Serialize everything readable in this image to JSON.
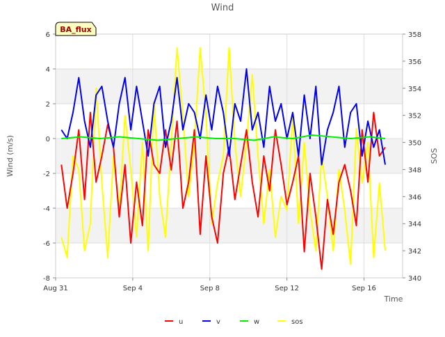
{
  "chart_data": {
    "type": "line",
    "title": "Wind",
    "xlabel": "Time",
    "ylabel": "Wind (m/s)",
    "y2label": "SOS",
    "site_badge": "BA_flux",
    "x_unit": "days since Aug 31",
    "xlim": [
      0,
      18
    ],
    "ylim": [
      -8,
      6
    ],
    "y2lim": [
      340,
      358
    ],
    "x_ticks": [
      {
        "value": 0,
        "label": "Aug 31"
      },
      {
        "value": 4,
        "label": "Sep 4"
      },
      {
        "value": 8,
        "label": "Sep 8"
      },
      {
        "value": 12,
        "label": "Sep 12"
      },
      {
        "value": 16,
        "label": "Sep 16"
      }
    ],
    "y_ticks": [
      "-8",
      "-6",
      "-4",
      "-2",
      "0",
      "2",
      "4",
      "6"
    ],
    "y2_ticks": [
      "340",
      "342",
      "344",
      "346",
      "348",
      "350",
      "352",
      "354",
      "356",
      "358"
    ],
    "bands": [
      [
        4,
        2
      ],
      [
        0,
        -2
      ],
      [
        -4,
        -6
      ]
    ],
    "series": [
      {
        "name": "u",
        "color": "#ff0000",
        "axis": "left",
        "x": [
          0.3,
          0.6,
          0.9,
          1.2,
          1.5,
          1.8,
          2.1,
          2.4,
          2.7,
          3.0,
          3.3,
          3.6,
          3.9,
          4.2,
          4.5,
          4.8,
          5.1,
          5.4,
          5.7,
          6.0,
          6.3,
          6.6,
          6.9,
          7.2,
          7.5,
          7.8,
          8.1,
          8.4,
          8.7,
          9.0,
          9.3,
          9.6,
          9.9,
          10.2,
          10.5,
          10.8,
          11.1,
          11.4,
          11.7,
          12.0,
          12.3,
          12.6,
          12.9,
          13.2,
          13.5,
          13.8,
          14.1,
          14.4,
          14.7,
          15.0,
          15.3,
          15.6,
          15.9,
          16.2,
          16.5,
          16.8,
          17.1
        ],
        "values": [
          -1.5,
          -4.0,
          -2.0,
          0.5,
          -3.5,
          1.5,
          -2.5,
          -1.0,
          0.8,
          -0.5,
          -4.5,
          -1.5,
          -6.0,
          -2.5,
          -5.0,
          0.5,
          -1.5,
          -2.0,
          0.5,
          -1.8,
          1.0,
          -4.0,
          -2.5,
          0.5,
          -5.5,
          -1.0,
          -4.5,
          -6.0,
          -2.0,
          -0.5,
          -3.5,
          -1.5,
          0.5,
          -2.5,
          -4.5,
          -1.0,
          -3.0,
          0.5,
          -1.5,
          -3.8,
          -2.5,
          -1.0,
          -6.5,
          -2.0,
          -4.5,
          -7.5,
          -3.5,
          -5.5,
          -2.5,
          -1.5,
          -3.0,
          -5.0,
          0.5,
          -2.5,
          1.5,
          -1.0,
          -0.5
        ]
      },
      {
        "name": "v",
        "color": "#0000ee",
        "axis": "left",
        "x": [
          0.3,
          0.6,
          0.9,
          1.2,
          1.5,
          1.8,
          2.1,
          2.4,
          2.7,
          3.0,
          3.3,
          3.6,
          3.9,
          4.2,
          4.5,
          4.8,
          5.1,
          5.4,
          5.7,
          6.0,
          6.3,
          6.6,
          6.9,
          7.2,
          7.5,
          7.8,
          8.1,
          8.4,
          8.7,
          9.0,
          9.3,
          9.6,
          9.9,
          10.2,
          10.5,
          10.8,
          11.1,
          11.4,
          11.7,
          12.0,
          12.3,
          12.6,
          12.9,
          13.2,
          13.5,
          13.8,
          14.1,
          14.4,
          14.7,
          15.0,
          15.3,
          15.6,
          15.9,
          16.2,
          16.5,
          16.8,
          17.1
        ],
        "values": [
          0.5,
          0.0,
          1.5,
          3.5,
          1.0,
          -0.5,
          2.5,
          3.0,
          1.0,
          -0.5,
          2.0,
          3.5,
          0.5,
          3.0,
          1.0,
          -1.0,
          2.0,
          3.0,
          -0.5,
          1.0,
          3.5,
          0.5,
          2.0,
          1.5,
          0.0,
          2.5,
          0.5,
          3.0,
          1.5,
          -1.0,
          2.0,
          1.0,
          4.0,
          0.5,
          1.5,
          -0.5,
          3.0,
          1.0,
          2.0,
          0.0,
          1.5,
          -1.0,
          2.5,
          0.0,
          3.0,
          -1.5,
          0.5,
          1.5,
          3.0,
          -0.5,
          1.5,
          2.0,
          -1.0,
          1.0,
          -0.5,
          0.5,
          -1.5
        ]
      },
      {
        "name": "w",
        "color": "#00ee00",
        "axis": "left",
        "x": [
          0.3,
          1.3,
          2.3,
          3.3,
          4.3,
          5.3,
          6.3,
          7.3,
          8.3,
          9.3,
          10.3,
          11.3,
          12.3,
          13.3,
          14.3,
          15.3,
          16.3,
          17.1
        ],
        "values": [
          0.0,
          0.1,
          0.0,
          0.1,
          0.0,
          -0.1,
          0.0,
          0.1,
          0.0,
          0.0,
          -0.1,
          0.1,
          0.0,
          0.2,
          0.1,
          0.0,
          0.1,
          0.0
        ]
      },
      {
        "name": "sos",
        "color": "#ffff00",
        "axis": "right",
        "x": [
          0.3,
          0.6,
          0.9,
          1.2,
          1.5,
          1.8,
          2.1,
          2.4,
          2.7,
          3.0,
          3.3,
          3.6,
          3.9,
          4.2,
          4.5,
          4.8,
          5.1,
          5.4,
          5.7,
          6.0,
          6.3,
          6.6,
          6.9,
          7.2,
          7.5,
          7.8,
          8.1,
          8.4,
          8.7,
          9.0,
          9.3,
          9.6,
          9.9,
          10.2,
          10.5,
          10.8,
          11.1,
          11.4,
          11.7,
          12.0,
          12.3,
          12.6,
          12.9,
          13.2,
          13.5,
          13.8,
          14.1,
          14.4,
          14.7,
          15.0,
          15.3,
          15.6,
          15.9,
          16.2,
          16.5,
          16.8,
          17.1
        ],
        "values": [
          343,
          341.5,
          349,
          348,
          342,
          344,
          354,
          347,
          341.5,
          349,
          345,
          352,
          348,
          343,
          350,
          342,
          353,
          346,
          343,
          350,
          357,
          352,
          346,
          350,
          357,
          352,
          344,
          347,
          349,
          357,
          350,
          346,
          350,
          355,
          349,
          344,
          348,
          343,
          346,
          345,
          352,
          344,
          350,
          345,
          342,
          349,
          346,
          342,
          348,
          345,
          341,
          351,
          347,
          350,
          341.5,
          347,
          342
        ]
      }
    ]
  }
}
